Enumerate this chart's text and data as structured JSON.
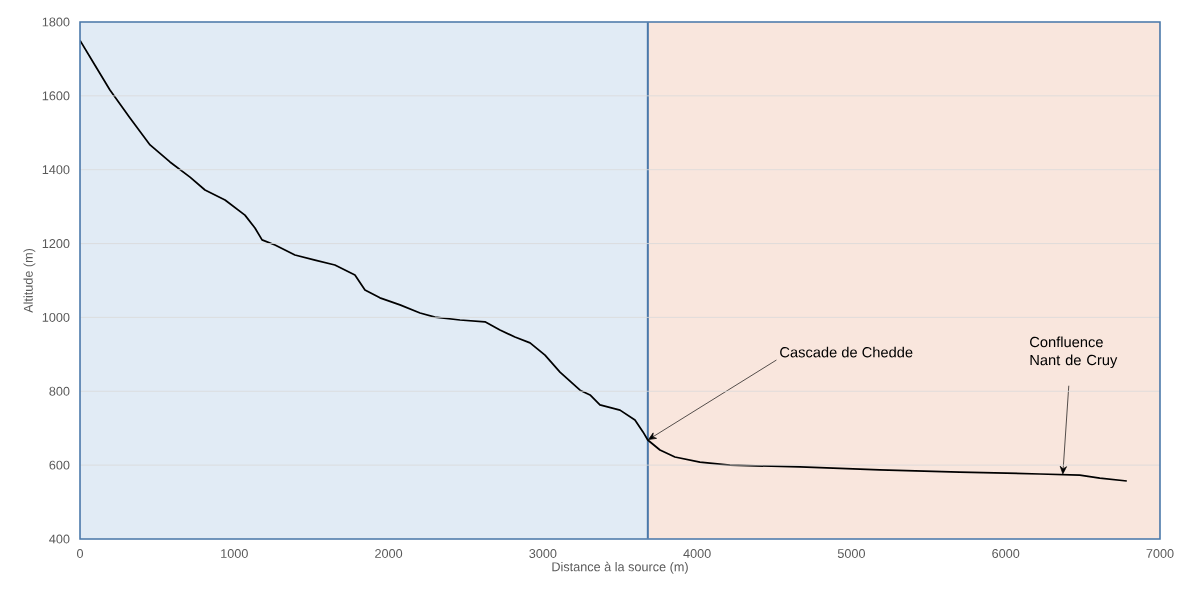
{
  "chart_data": {
    "type": "line",
    "xlabel": "Distance à la source (m)",
    "ylabel": "Altitude (m)",
    "x": [
      0,
      97,
      194,
      324,
      454,
      583,
      713,
      810,
      940,
      1069,
      1134,
      1180,
      1264,
      1393,
      1523,
      1652,
      1782,
      1847,
      1944,
      2074,
      2204,
      2301,
      2463,
      2625,
      2722,
      2819,
      2917,
      3014,
      3111,
      3241,
      3306,
      3370,
      3500,
      3597,
      3649,
      3680,
      3759,
      3856,
      4018,
      4212,
      4666,
      5184,
      5702,
      6221,
      6480,
      6610,
      6785
    ],
    "series": [
      {
        "color": "#000000",
        "values": [
          1750,
          1683,
          1616,
          1540,
          1467,
          1421,
          1380,
          1345,
          1318,
          1277,
          1242,
          1210,
          1196,
          1169,
          1155,
          1142,
          1115,
          1074,
          1053,
          1034,
          1012,
          1001,
          993,
          988,
          966,
          947,
          931,
          898,
          852,
          803,
          790,
          763,
          749,
          722,
          690,
          668,
          641,
          622,
          608,
          600,
          595,
          587,
          581,
          576,
          573,
          565,
          557
        ]
      }
    ],
    "xlim": [
      0,
      7000
    ],
    "ylim": [
      400,
      1800
    ],
    "xticks": [
      0,
      1000,
      2000,
      3000,
      4000,
      5000,
      6000,
      7000
    ],
    "yticks": [
      400,
      600,
      800,
      1000,
      1200,
      1400,
      1600,
      1800
    ],
    "grid": "y",
    "marker": "none",
    "line_style": "solid",
    "bands": [
      {
        "axis": "x",
        "from": 0,
        "to": 3680,
        "color": "#e1ebf5"
      },
      {
        "axis": "x",
        "from": 3680,
        "to": 7000,
        "color": "#f9e6dd"
      }
    ],
    "ref_lines": [
      {
        "axis": "x",
        "value": 3680,
        "color": "#4a78aa"
      }
    ],
    "annotations": [
      {
        "text": "Cascade de Chedde",
        "x": 3680,
        "y": 668
      },
      {
        "text": "Confluence Nant de Cruy",
        "x": 6370,
        "y": 574
      }
    ]
  }
}
